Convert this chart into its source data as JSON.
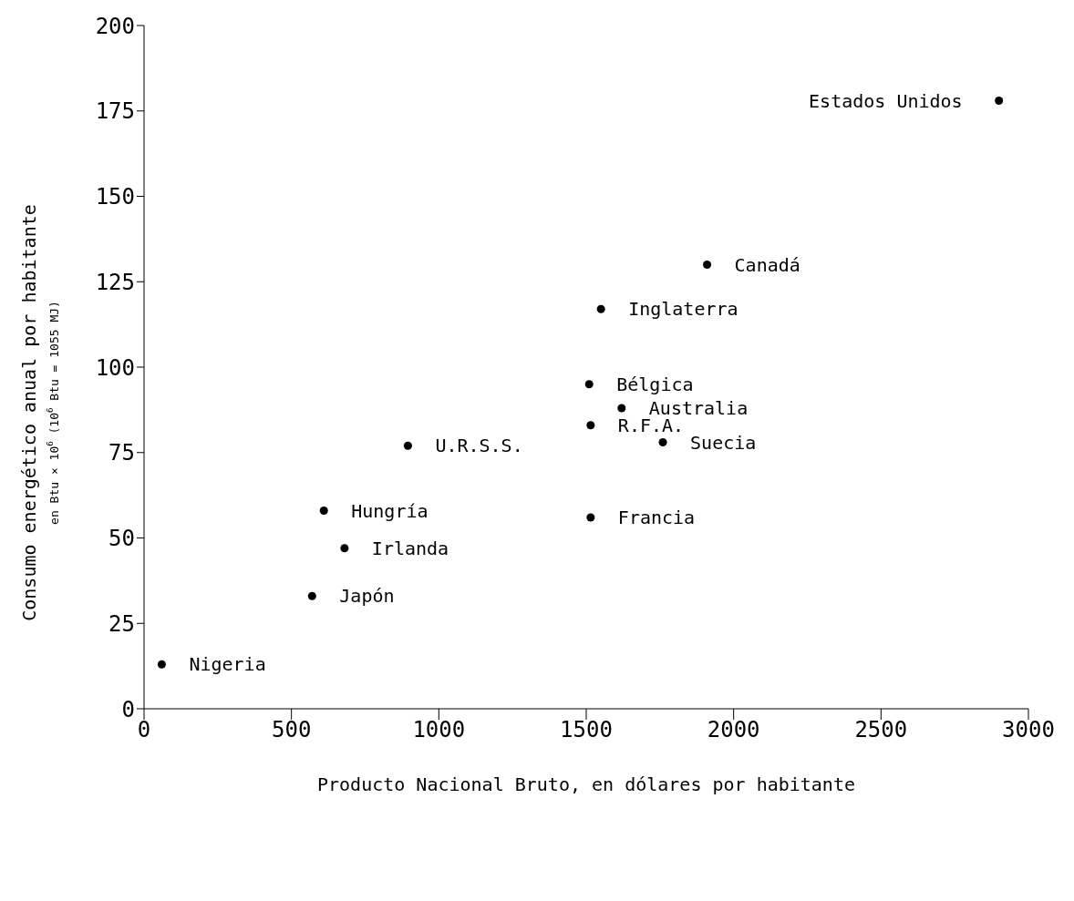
{
  "chart_data": {
    "type": "scatter",
    "xlabel": "Producto Nacional Bruto, en dólares por habitante",
    "ylabel": "Consumo energético anual por habitante",
    "annotations": [
      "en Btu × 10$^{6}$ (10$^{6}$ Btu = 1055 MJ)",
      {
        "text": "Estados Unidos",
        "x": 2900,
        "y": 178
      },
      {
        "text": "Canadá",
        "x": 1910,
        "y": 130
      },
      {
        "text": "Inglaterra",
        "x": 1550,
        "y": 117
      },
      {
        "text": "Bélgica",
        "x": 1510,
        "y": 95
      },
      {
        "text": "Australia",
        "x": 1620,
        "y": 88
      },
      {
        "text": "R.F.A.",
        "x": 1515,
        "y": 83
      },
      {
        "text": "Suecia",
        "x": 1760,
        "y": 78
      },
      {
        "text": "U.R.S.S.",
        "x": 895,
        "y": 77
      },
      {
        "text": "Hungría",
        "x": 610,
        "y": 58
      },
      {
        "text": "Francia",
        "x": 1515,
        "y": 56
      },
      {
        "text": "Irlanda",
        "x": 680,
        "y": 47
      },
      {
        "text": "Japón",
        "x": 570,
        "y": 33
      },
      {
        "text": "Nigeria",
        "x": 60,
        "y": 13
      }
    ],
    "x": [
      2900,
      1910,
      1550,
      1510,
      1620,
      1515,
      1760,
      895,
      610,
      1515,
      680,
      570,
      60
    ],
    "values": [
      178,
      130,
      117,
      95,
      88,
      83,
      78,
      77,
      58,
      56,
      47,
      33,
      13
    ],
    "color": "#000000",
    "marker": "circle",
    "grid": false,
    "xlim": [
      0,
      3000
    ],
    "xticks": [
      0,
      500,
      1000,
      1500,
      2000,
      2500,
      3000
    ],
    "ylim": [
      0,
      200
    ],
    "yticks": [
      0,
      25,
      50,
      75,
      100,
      125,
      150,
      175,
      200
    ]
  }
}
